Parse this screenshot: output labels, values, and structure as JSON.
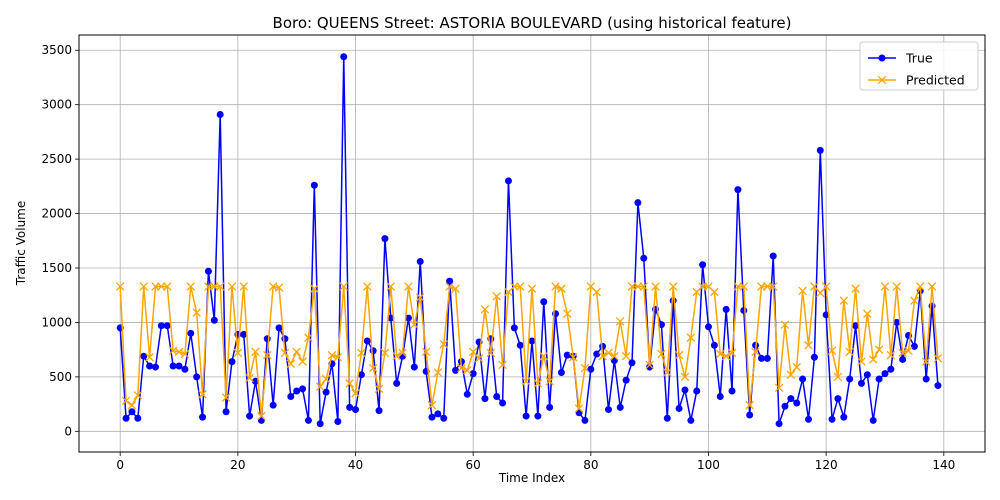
{
  "chart_data": {
    "type": "line",
    "title": "Boro: QUEENS Street: ASTORIA BOULEVARD (using historical feature)",
    "xlabel": "Time Index",
    "ylabel": "Traffic Volume",
    "xlim": [
      -7,
      147
    ],
    "ylim": [
      -190,
      3640
    ],
    "xticks": [
      0,
      20,
      40,
      60,
      80,
      100,
      120,
      140
    ],
    "yticks": [
      0,
      500,
      1000,
      1500,
      2000,
      2500,
      3000,
      3500
    ],
    "grid": true,
    "legend_position": "upper right",
    "series": [
      {
        "name": "True",
        "color": "#0000ff",
        "marker": "circle",
        "values": [
          950,
          120,
          180,
          120,
          690,
          600,
          590,
          970,
          970,
          600,
          600,
          570,
          900,
          500,
          130,
          1470,
          1020,
          2910,
          180,
          640,
          890,
          890,
          140,
          460,
          100,
          850,
          240,
          950,
          850,
          320,
          370,
          390,
          100,
          2260,
          70,
          360,
          620,
          90,
          3440,
          220,
          200,
          520,
          830,
          740,
          190,
          1770,
          1040,
          440,
          690,
          1040,
          590,
          1560,
          550,
          130,
          160,
          120,
          1380,
          560,
          640,
          340,
          530,
          820,
          300,
          850,
          320,
          260,
          2300,
          950,
          790,
          140,
          830,
          140,
          1190,
          220,
          1080,
          540,
          700,
          690,
          170,
          100,
          570,
          710,
          780,
          200,
          650,
          220,
          470,
          630,
          2100,
          1590,
          590,
          1120,
          980,
          120,
          1200,
          210,
          380,
          100,
          370,
          1530,
          960,
          790,
          320,
          1120,
          370,
          2220,
          1110,
          150,
          790,
          670,
          670,
          1610,
          70,
          230,
          300,
          260,
          480,
          110,
          680,
          2580,
          1070,
          110,
          300,
          130,
          480,
          970,
          440,
          520,
          100,
          480,
          530,
          570,
          1000,
          660,
          880,
          780,
          1290,
          480,
          1150,
          420
        ]
      },
      {
        "name": "Predicted",
        "color": "#ffa500",
        "marker": "x",
        "values": [
          1330,
          280,
          240,
          330,
          1330,
          680,
          1330,
          1330,
          1330,
          740,
          730,
          710,
          1330,
          1090,
          340,
          1330,
          1330,
          1330,
          310,
          1330,
          720,
          1330,
          490,
          730,
          140,
          700,
          1330,
          1320,
          720,
          620,
          730,
          640,
          860,
          1310,
          410,
          480,
          700,
          680,
          1330,
          440,
          350,
          720,
          1330,
          580,
          390,
          720,
          1330,
          690,
          720,
          1330,
          980,
          1230,
          730,
          240,
          540,
          800,
          1330,
          1310,
          580,
          560,
          730,
          670,
          1120,
          720,
          1240,
          610,
          1280,
          1330,
          1330,
          460,
          1310,
          440,
          690,
          460,
          1330,
          1310,
          1080,
          680,
          210,
          580,
          1330,
          1280,
          690,
          720,
          690,
          1010,
          690,
          1330,
          1330,
          1330,
          610,
          1330,
          710,
          540,
          1330,
          700,
          500,
          860,
          1280,
          1330,
          1330,
          1280,
          710,
          690,
          720,
          1330,
          1330,
          240,
          730,
          1330,
          1330,
          1330,
          400,
          980,
          520,
          590,
          1290,
          790,
          1330,
          1270,
          1330,
          740,
          500,
          1200,
          730,
          1310,
          640,
          1080,
          660,
          750,
          1330,
          700,
          1330,
          720,
          740,
          1200,
          1330,
          640,
          1330,
          670
        ]
      }
    ]
  }
}
